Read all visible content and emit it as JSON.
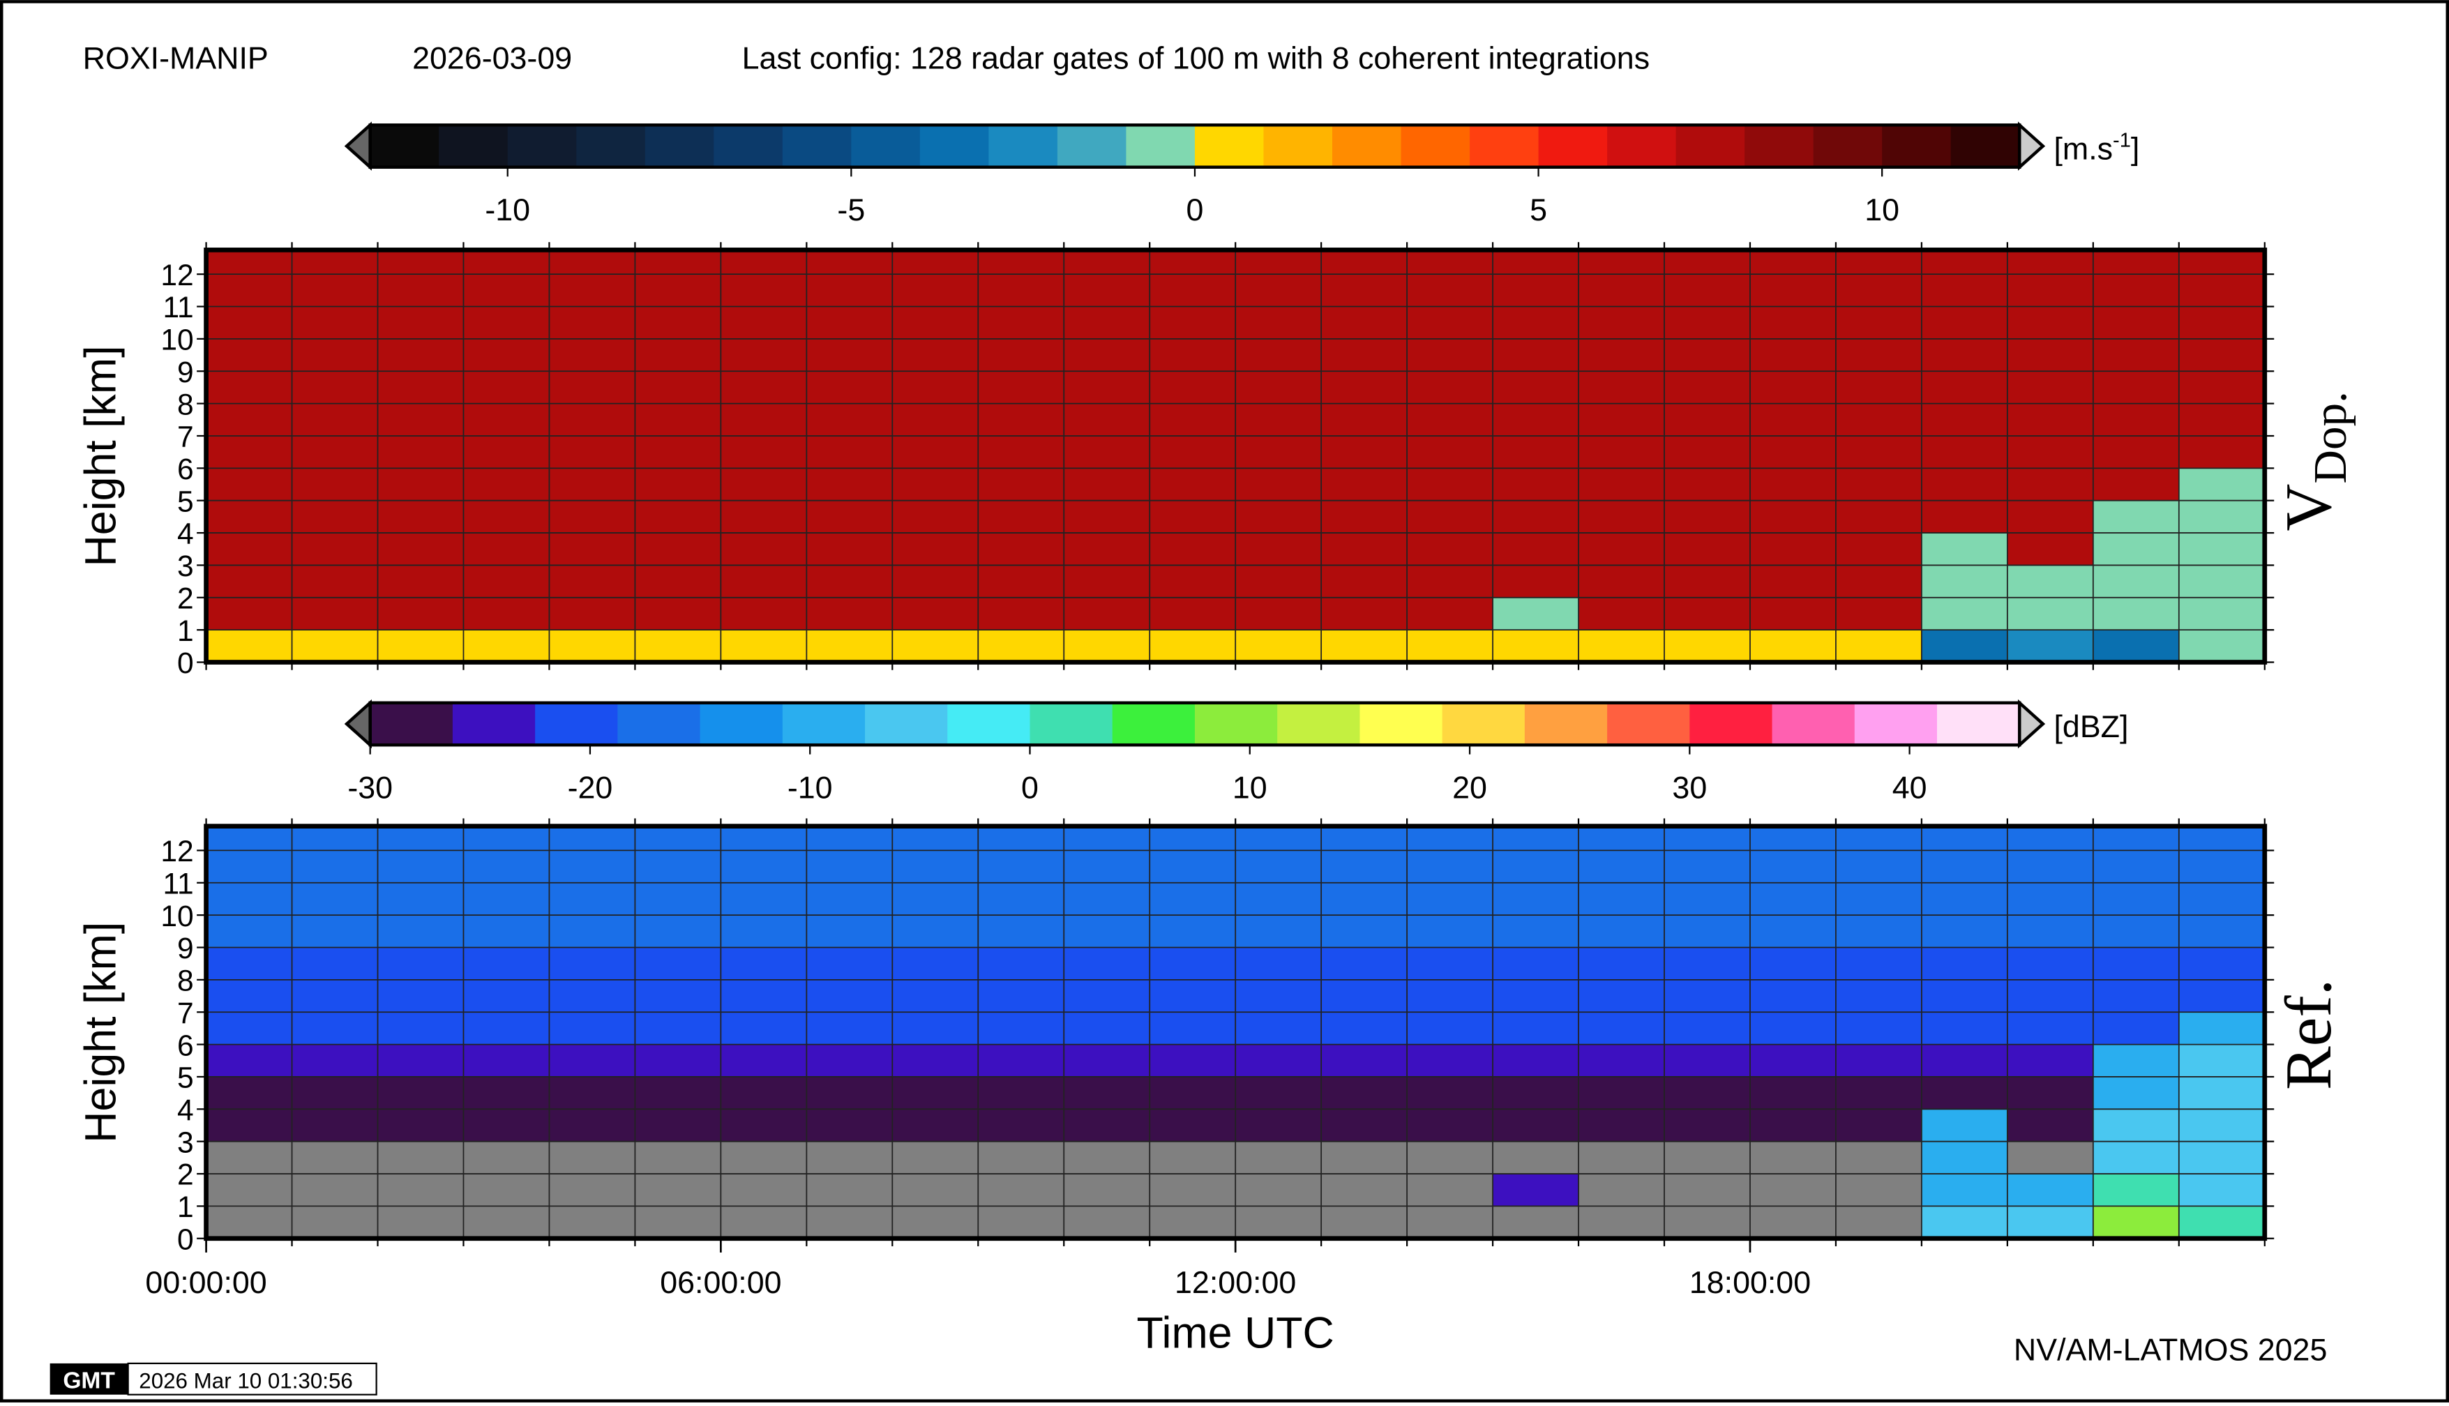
{
  "header": {
    "station": "ROXI-MANIP",
    "date": "2026-03-09",
    "config": "Last config: 128 radar gates of 100 m with 8 coherent integrations"
  },
  "footer": {
    "logo": "GMT",
    "timestamp": "2026 Mar 10 01:30:56",
    "credit": "NV/AM-LATMOS 2025"
  },
  "chart_data": [
    {
      "type": "heatmap",
      "ylabel": "Height [km]",
      "side_label": {
        "main": "V",
        "sub": "Dop."
      },
      "xlim": [
        0,
        24
      ],
      "ylim": [
        0,
        12.75
      ],
      "yticks": [
        0,
        1,
        2,
        3,
        4,
        5,
        6,
        7,
        8,
        9,
        10,
        11,
        12
      ],
      "grid": true,
      "xgrid": [
        0,
        1,
        2,
        3,
        4,
        5,
        6,
        7,
        8,
        9,
        10,
        11,
        12,
        13,
        14,
        15,
        16,
        17,
        18,
        19,
        20,
        21,
        22,
        23,
        24
      ],
      "x_bins": [
        0,
        1,
        2,
        3,
        4,
        5,
        6,
        7,
        8,
        9,
        10,
        11,
        12,
        13,
        14,
        15,
        16,
        17,
        18,
        19,
        20,
        21,
        22,
        23,
        24
      ],
      "y_bins": [
        0,
        1,
        2,
        3,
        4,
        5,
        6,
        7,
        8,
        9,
        10,
        11,
        12,
        12.75
      ],
      "colorbar": {
        "unit": {
          "text": "[m.s",
          "sup": "-1",
          "close": "]"
        },
        "lim": [
          -12,
          12
        ],
        "ticks": [
          -10,
          -5,
          0,
          5,
          10
        ],
        "colors": [
          "#0a0a0a",
          "#0f1420",
          "#101c30",
          "#0f2540",
          "#0d2f55",
          "#0c3a6a",
          "#0a4a82",
          "#095c99",
          "#0a70b0",
          "#1a8ac0",
          "#40a8c0",
          "#80d8b0",
          "#ffd700",
          "#ffb400",
          "#ff8c00",
          "#ff6600",
          "#ff4010",
          "#f01a10",
          "#d01010",
          "#b00c0c",
          "#900a0a",
          "#700808",
          "#500505",
          "#300303"
        ]
      },
      "z": [
        [
          0.5,
          0.5,
          0.5,
          0.5,
          0.5,
          0.5,
          0.5,
          0.5,
          0.5,
          0.5,
          0.5,
          0.5,
          0.5,
          0.5,
          0.5,
          0.5,
          0.5,
          0.5,
          0.5,
          0.5,
          -4,
          -3,
          -4,
          -1
        ],
        [
          7,
          7,
          7,
          7,
          7,
          7,
          7,
          7,
          7,
          7,
          7,
          7,
          7,
          7,
          7,
          -1,
          7,
          7,
          7,
          7,
          -1,
          -1,
          -1,
          -1
        ],
        [
          7,
          7,
          7,
          7,
          7,
          7,
          7,
          7,
          7,
          7,
          7,
          7,
          7,
          7,
          7,
          7,
          7,
          7,
          7,
          7,
          -1,
          -1,
          -1,
          -1
        ],
        [
          7,
          7,
          7,
          7,
          7,
          7,
          7,
          7,
          7,
          7,
          7,
          7,
          7,
          7,
          7,
          7,
          7,
          7,
          7,
          7,
          -1,
          7,
          -1,
          -1
        ],
        [
          7,
          7,
          7,
          7,
          7,
          7,
          7,
          7,
          7,
          7,
          7,
          7,
          7,
          7,
          7,
          7,
          7,
          7,
          7,
          7,
          7,
          7,
          -1,
          -1
        ],
        [
          7,
          7,
          7,
          7,
          7,
          7,
          7,
          7,
          7,
          7,
          7,
          7,
          7,
          7,
          7,
          7,
          7,
          7,
          7,
          7,
          7,
          7,
          7,
          -1
        ],
        [
          7,
          7,
          7,
          7,
          7,
          7,
          7,
          7,
          7,
          7,
          7,
          7,
          7,
          7,
          7,
          7,
          7,
          7,
          7,
          7,
          7,
          7,
          7,
          7
        ],
        [
          7,
          7,
          7,
          7,
          7,
          7,
          7,
          7,
          7,
          7,
          7,
          7,
          7,
          7,
          7,
          7,
          7,
          7,
          7,
          7,
          7,
          7,
          7,
          7
        ],
        [
          7,
          7,
          7,
          7,
          7,
          7,
          7,
          7,
          7,
          7,
          7,
          7,
          7,
          7,
          7,
          7,
          7,
          7,
          7,
          7,
          7,
          7,
          7,
          7
        ],
        [
          7,
          7,
          7,
          7,
          7,
          7,
          7,
          7,
          7,
          7,
          7,
          7,
          7,
          7,
          7,
          7,
          7,
          7,
          7,
          7,
          7,
          7,
          7,
          7
        ],
        [
          7,
          7,
          7,
          7,
          7,
          7,
          7,
          7,
          7,
          7,
          7,
          7,
          7,
          7,
          7,
          7,
          7,
          7,
          7,
          7,
          7,
          7,
          7,
          7
        ],
        [
          7,
          7,
          7,
          7,
          7,
          7,
          7,
          7,
          7,
          7,
          7,
          7,
          7,
          7,
          7,
          7,
          7,
          7,
          7,
          7,
          7,
          7,
          7,
          7
        ],
        [
          7,
          7,
          7,
          7,
          7,
          7,
          7,
          7,
          7,
          7,
          7,
          7,
          7,
          7,
          7,
          7,
          7,
          7,
          7,
          7,
          7,
          7,
          7,
          7
        ]
      ]
    },
    {
      "type": "heatmap",
      "ylabel": "Height [km]",
      "side_label": {
        "main": "Ref."
      },
      "xlabel": "Time UTC",
      "xlim": [
        0,
        24
      ],
      "ylim": [
        0,
        12.75
      ],
      "yticks": [
        0,
        1,
        2,
        3,
        4,
        5,
        6,
        7,
        8,
        9,
        10,
        11,
        12
      ],
      "grid": true,
      "xticks": [
        {
          "value": 0,
          "label": "00:00:00"
        },
        {
          "value": 6,
          "label": "06:00:00"
        },
        {
          "value": 12,
          "label": "12:00:00"
        },
        {
          "value": 18,
          "label": "18:00:00"
        }
      ],
      "xgrid": [
        0,
        1,
        2,
        3,
        4,
        5,
        6,
        7,
        8,
        9,
        10,
        11,
        12,
        13,
        14,
        15,
        16,
        17,
        18,
        19,
        20,
        21,
        22,
        23,
        24
      ],
      "x_bins": [
        0,
        1,
        2,
        3,
        4,
        5,
        6,
        7,
        8,
        9,
        10,
        11,
        12,
        13,
        14,
        15,
        16,
        17,
        18,
        19,
        20,
        21,
        22,
        23,
        24
      ],
      "y_bins": [
        0,
        1,
        2,
        3,
        4,
        5,
        6,
        7,
        8,
        9,
        10,
        11,
        12,
        12.75
      ],
      "colorbar": {
        "unit": {
          "text": "[dBZ]"
        },
        "lim": [
          -30,
          45
        ],
        "ticks": [
          -30,
          -20,
          -10,
          0,
          10,
          20,
          30,
          40
        ],
        "colors": [
          "#3a0f4a",
          "#3d10c0",
          "#1a4ff0",
          "#1a6fe8",
          "#1590ec",
          "#2aaeef",
          "#4ac7f0",
          "#45ebf5",
          "#3fdfb0",
          "#3cf03c",
          "#8cec3c",
          "#c4f040",
          "#ffff50",
          "#ffd840",
          "#ffa040",
          "#ff6040",
          "#ff2040",
          "#ff60b0",
          "#ffa0f0",
          "#ffe0f8"
        ]
      },
      "z": [
        [
          null,
          null,
          null,
          null,
          null,
          null,
          null,
          null,
          null,
          null,
          null,
          null,
          null,
          null,
          null,
          null,
          null,
          null,
          null,
          null,
          -5,
          -5,
          10,
          0
        ],
        [
          null,
          null,
          null,
          null,
          null,
          null,
          null,
          null,
          null,
          null,
          null,
          null,
          null,
          null,
          null,
          -25,
          null,
          null,
          null,
          null,
          -10,
          -10,
          0,
          -5
        ],
        [
          null,
          null,
          null,
          null,
          null,
          null,
          null,
          null,
          null,
          null,
          null,
          null,
          null,
          null,
          null,
          null,
          null,
          null,
          null,
          null,
          -10,
          null,
          -5,
          -5
        ],
        [
          -27,
          -27,
          -27,
          -27,
          -27,
          -27,
          -27,
          -27,
          -27,
          -27,
          -27,
          -27,
          -27,
          -27,
          -27,
          -27,
          -27,
          -27,
          -27,
          -27,
          -10,
          -27,
          -5,
          -5
        ],
        [
          -27,
          -27,
          -27,
          -27,
          -27,
          -27,
          -27,
          -27,
          -27,
          -27,
          -27,
          -27,
          -27,
          -27,
          -27,
          -27,
          -27,
          -27,
          -27,
          -27,
          -27,
          -27,
          -8,
          -5
        ],
        [
          -24,
          -24,
          -24,
          -24,
          -24,
          -24,
          -24,
          -24,
          -24,
          -24,
          -24,
          -24,
          -24,
          -24,
          -24,
          -24,
          -24,
          -24,
          -24,
          -24,
          -24,
          -24,
          -10,
          -5
        ],
        [
          -22,
          -22,
          -22,
          -22,
          -22,
          -22,
          -22,
          -22,
          -22,
          -22,
          -22,
          -22,
          -22,
          -22,
          -22,
          -22,
          -22,
          -22,
          -22,
          -22,
          -22,
          -22,
          -22,
          -10
        ],
        [
          -21,
          -21,
          -21,
          -21,
          -21,
          -21,
          -21,
          -21,
          -21,
          -21,
          -21,
          -21,
          -21,
          -21,
          -21,
          -21,
          -21,
          -21,
          -21,
          -21,
          -21,
          -21,
          -21,
          -21
        ],
        [
          -19,
          -19,
          -19,
          -19,
          -19,
          -19,
          -19,
          -19,
          -19,
          -19,
          -19,
          -19,
          -19,
          -19,
          -19,
          -19,
          -19,
          -19,
          -19,
          -19,
          -19,
          -19,
          -19,
          -19
        ],
        [
          -18,
          -18,
          -18,
          -18,
          -18,
          -18,
          -18,
          -18,
          -18,
          -18,
          -18,
          -18,
          -18,
          -18,
          -18,
          -18,
          -18,
          -18,
          -18,
          -18,
          -18,
          -18,
          -18,
          -18
        ],
        [
          -18,
          -18,
          -18,
          -18,
          -18,
          -18,
          -18,
          -18,
          -18,
          -18,
          -18,
          -18,
          -18,
          -18,
          -18,
          -18,
          -18,
          -18,
          -18,
          -18,
          -18,
          -18,
          -18,
          -18
        ],
        [
          -17,
          -17,
          -17,
          -17,
          -17,
          -17,
          -17,
          -17,
          -17,
          -17,
          -17,
          -17,
          -17,
          -17,
          -17,
          -17,
          -17,
          -17,
          -17,
          -17,
          -17,
          -17,
          -17,
          -17
        ],
        [
          -17,
          -17,
          -17,
          -17,
          -17,
          -17,
          -17,
          -17,
          -17,
          -17,
          -17,
          -17,
          -17,
          -17,
          -17,
          -17,
          -17,
          -17,
          -17,
          -17,
          -17,
          -17,
          -17,
          -17
        ]
      ]
    }
  ]
}
